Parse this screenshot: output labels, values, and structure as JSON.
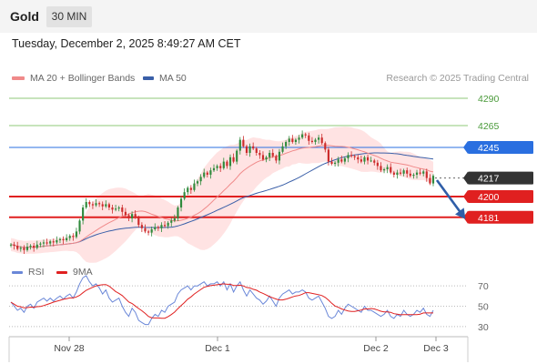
{
  "header": {
    "title": "Gold",
    "timeframe": "30 MIN"
  },
  "timestamp": "Tuesday, December 2, 2025 8:49:27 AM CET",
  "legend": {
    "ma20_label": "MA 20 + Bollinger Bands",
    "ma50_label": "MA 50",
    "credit": "Research © 2025 Trading Central"
  },
  "rsi_legend": {
    "rsi_label": "RSI",
    "ma_label": "9MA"
  },
  "colors": {
    "ma20": "#f08a8a",
    "band": "#ffd9d9",
    "ma50": "#3a5fa8",
    "up_candle": "#2f8a3c",
    "down_candle": "#cc2b2b",
    "support": "#e02020",
    "resistance": "#8fc97a",
    "pivot": "#2a6fe0",
    "current": "#333333",
    "rsi": "#6a87d8",
    "rsi_ma": "#e02020",
    "arrow": "#2f5ea8"
  },
  "chart_data": {
    "type": "candlestick",
    "instrument": "Gold",
    "timeframe": "30 MIN",
    "price_ylim": [
      4140,
      4300
    ],
    "x_ticks": [
      "Nov 28",
      "Dec 1",
      "Dec 2",
      "Dec 3"
    ],
    "levels": [
      {
        "value": 4290,
        "label": "4290",
        "kind": "resistance"
      },
      {
        "value": 4265,
        "label": "4265",
        "kind": "resistance"
      },
      {
        "value": 4245,
        "label": "4245",
        "kind": "pivot"
      },
      {
        "value": 4217,
        "label": "4217",
        "kind": "current"
      },
      {
        "value": 4200,
        "label": "4200",
        "kind": "support"
      },
      {
        "value": 4181,
        "label": "4181",
        "kind": "support"
      }
    ],
    "forecast_arrow": {
      "from": 4215,
      "to": 4182
    },
    "closes": [
      4156,
      4155,
      4152,
      4153,
      4151,
      4154,
      4155,
      4153,
      4156,
      4157,
      4158,
      4157,
      4159,
      4158,
      4160,
      4161,
      4160,
      4162,
      4164,
      4163,
      4168,
      4178,
      4190,
      4195,
      4193,
      4192,
      4194,
      4193,
      4191,
      4193,
      4190,
      4188,
      4189,
      4190,
      4186,
      4183,
      4180,
      4184,
      4181,
      4174,
      4171,
      4168,
      4167,
      4170,
      4172,
      4171,
      4174,
      4173,
      4176,
      4178,
      4180,
      4190,
      4198,
      4204,
      4208,
      4206,
      4212,
      4214,
      4218,
      4222,
      4220,
      4224,
      4226,
      4228,
      4226,
      4232,
      4228,
      4236,
      4232,
      4242,
      4252,
      4246,
      4240,
      4246,
      4244,
      4240,
      4238,
      4234,
      4236,
      4240,
      4237,
      4233,
      4241,
      4246,
      4250,
      4253,
      4250,
      4252,
      4254,
      4257,
      4256,
      4251,
      4250,
      4252,
      4254,
      4249,
      4243,
      4232,
      4230,
      4231,
      4234,
      4232,
      4235,
      4238,
      4237,
      4236,
      4234,
      4232,
      4236,
      4233,
      4233,
      4231,
      4228,
      4224,
      4225,
      4227,
      4222,
      4220,
      4222,
      4221,
      4224,
      4221,
      4219,
      4220,
      4222,
      4221,
      4223,
      4217,
      4212,
      4219
    ],
    "rsi_ylim": [
      20,
      80
    ],
    "rsi_levels": [
      70,
      50,
      30
    ],
    "rsi": [
      54,
      50,
      46,
      48,
      44,
      50,
      52,
      48,
      54,
      56,
      58,
      55,
      58,
      55,
      58,
      60,
      57,
      60,
      62,
      58,
      64,
      72,
      78,
      80,
      74,
      70,
      72,
      68,
      62,
      66,
      58,
      54,
      56,
      58,
      50,
      44,
      40,
      48,
      44,
      36,
      34,
      32,
      32,
      38,
      42,
      40,
      46,
      44,
      50,
      52,
      54,
      62,
      66,
      68,
      70,
      66,
      70,
      70,
      72,
      74,
      70,
      72,
      72,
      74,
      70,
      74,
      66,
      72,
      64,
      70,
      74,
      66,
      60,
      66,
      62,
      58,
      56,
      52,
      55,
      60,
      55,
      50,
      58,
      62,
      64,
      66,
      62,
      64,
      64,
      66,
      64,
      58,
      56,
      58,
      60,
      54,
      48,
      40,
      38,
      40,
      46,
      42,
      48,
      52,
      50,
      48,
      46,
      44,
      50,
      46,
      46,
      44,
      42,
      40,
      42,
      46,
      40,
      38,
      42,
      40,
      46,
      42,
      40,
      42,
      46,
      44,
      48,
      42,
      40,
      46
    ]
  }
}
